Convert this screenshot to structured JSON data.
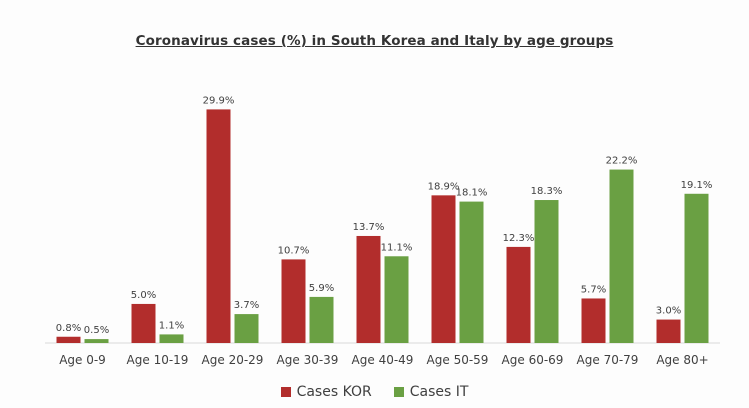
{
  "chart_data": {
    "type": "bar",
    "title": "Coronavirus cases (%) in South Korea and Italy by age groups",
    "xlabel": "",
    "ylabel": "",
    "ylim": [
      0,
      32
    ],
    "grid": false,
    "legend_position": "bottom",
    "categories": [
      "Age 0-9",
      "Age 10-19",
      "Age 20-29",
      "Age 30-39",
      "Age 40-49",
      "Age 50-59",
      "Age 60-69",
      "Age 70-79",
      "Age 80+"
    ],
    "series": [
      {
        "name": "Cases KOR",
        "color": "#b22d2c",
        "values": [
          0.8,
          5.0,
          29.9,
          10.7,
          13.7,
          18.9,
          12.3,
          5.7,
          3.0
        ],
        "labels": [
          "0.8%",
          "5.0%",
          "29.9%",
          "10.7%",
          "13.7%",
          "18.9%",
          "12.3%",
          "5.7%",
          "3.0%"
        ]
      },
      {
        "name": "Cases IT",
        "color": "#6aa043",
        "values": [
          0.5,
          1.1,
          3.7,
          5.9,
          11.1,
          18.1,
          18.3,
          22.2,
          19.1
        ],
        "labels": [
          "0.5%",
          "1.1%",
          "3.7%",
          "5.9%",
          "11.1%",
          "18.1%",
          "18.3%",
          "22.2%",
          "19.1%"
        ]
      }
    ]
  }
}
